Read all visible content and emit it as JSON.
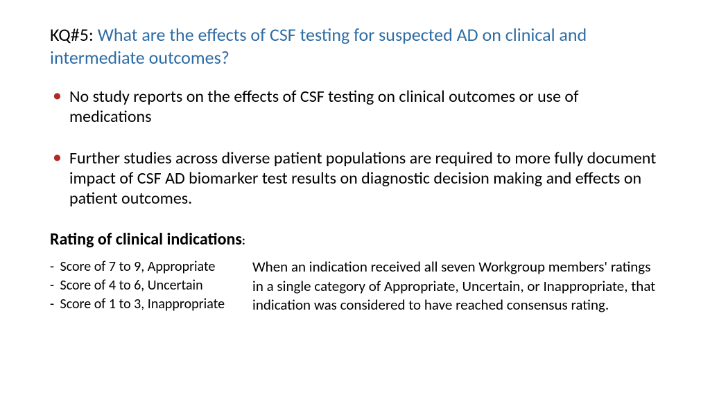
{
  "heading": {
    "label": "KQ#5:",
    "question": "What are the effects of CSF testing for suspected AD on clinical and intermediate outcomes?"
  },
  "bullets": [
    "No study reports on the effects of CSF testing on clinical outcomes or use of medications",
    "Further studies across diverse patient populations are required to more fully document impact of CSF AD biomarker test results on diagnostic decision making and effects on patient outcomes."
  ],
  "subheading": "Rating of clinical indications",
  "scores": [
    "Score of 7 to 9, Appropriate",
    "Score of 4 to 6, Uncertain",
    "Score of 1 to 3, Inappropriate"
  ],
  "paragraph": "When an indication received all seven Workgroup members' ratings in a single category of Appropriate, Uncertain, or Inappropriate, that indication was considered to have reached consensus rating.",
  "colors": {
    "heading_question": "#2e6ca4",
    "bullet_marker": "#b02a2a",
    "text": "#000000",
    "background": "#ffffff"
  },
  "typography": {
    "heading_fontsize": 26,
    "body_fontsize": 24,
    "score_fontsize": 20,
    "paragraph_fontsize": 21,
    "font_family": "Calibri"
  }
}
